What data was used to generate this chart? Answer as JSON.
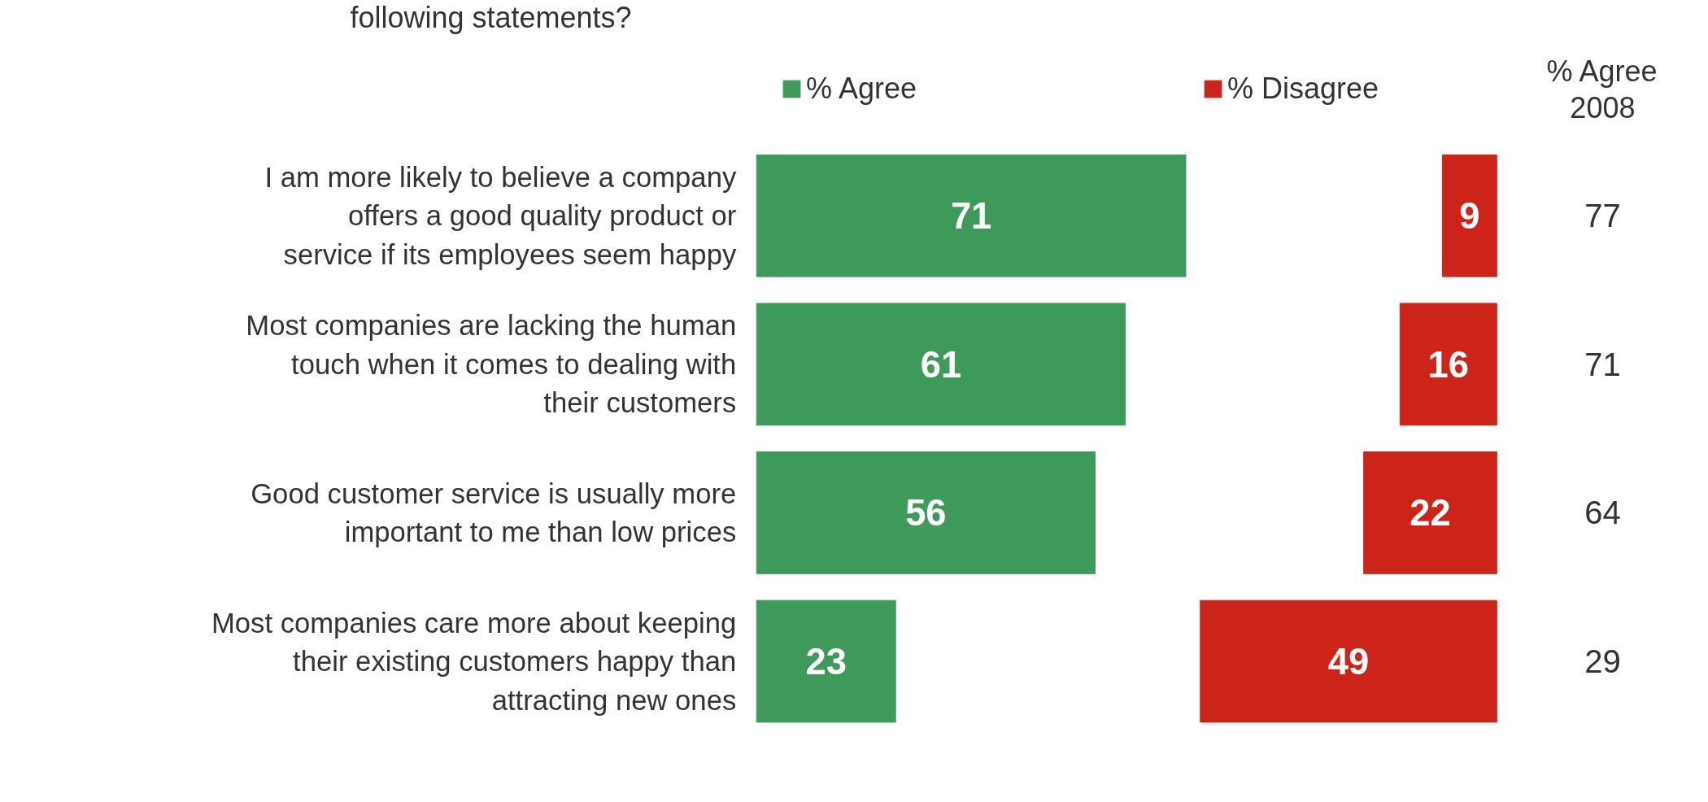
{
  "chart_data": [
    {
      "type": "bar",
      "orientation": "horizontal",
      "title": "following statements?",
      "categories": [
        "I am more likely to believe a company offers a good quality product or service if its employees seem happy",
        "Most companies are lacking the human touch when it comes to dealing with their customers",
        "Good customer service is usually more important to me than low prices",
        "Most companies care more about keeping their existing customers happy than attracting new ones"
      ],
      "series": [
        {
          "name": "% Agree",
          "color": "#3d9a5a",
          "values": [
            71,
            61,
            56,
            23
          ]
        }
      ],
      "data_labels": true,
      "legend": "top"
    },
    {
      "type": "bar",
      "orientation": "horizontal",
      "tick_labels": false,
      "categories": [
        "I am more likely to believe a company offers a good quality product or service if its employees seem happy",
        "Most companies are lacking the human touch when it comes to dealing with their customers",
        "Good customer service is usually more important to me than low prices",
        "Most companies care more about keeping their existing customers happy than attracting new ones"
      ],
      "series": [
        {
          "name": "% Disagree",
          "color": "#cc2418",
          "values": [
            9,
            16,
            22,
            49
          ]
        }
      ],
      "data_labels": true,
      "legend": "top",
      "annotations": [
        "% Agree 2008",
        "77",
        "71",
        "64",
        "29"
      ]
    }
  ]
}
